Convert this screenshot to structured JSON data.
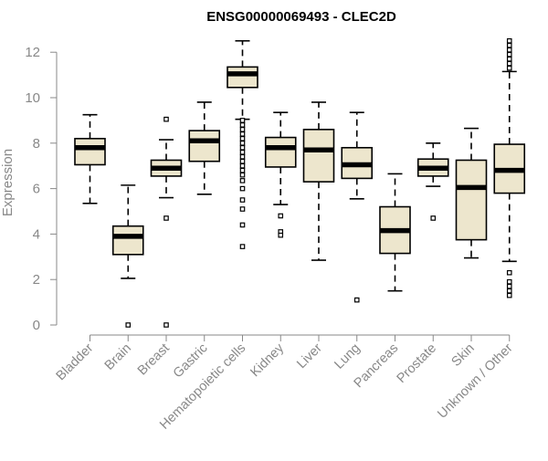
{
  "chart_data": {
    "type": "boxplot",
    "title": "ENSG00000069493 - CLEC2D",
    "xlabel": "",
    "ylabel": "Expression",
    "ylim": [
      0,
      12.6
    ],
    "yticks": [
      "0",
      "2",
      "4",
      "6",
      "8",
      "10",
      "12"
    ],
    "grid": false,
    "legend": "none",
    "colors": {
      "box_fill": "#ede6cd",
      "box_stroke": "#000000",
      "median": "#000000",
      "axis": "#888888"
    },
    "categories": [
      "Bladder",
      "Brain",
      "Breast",
      "Gastric",
      "Hematopoietic cells",
      "Kidney",
      "Liver",
      "Lung",
      "Pancreas",
      "Prostate",
      "Skin",
      "Unknown / Other"
    ],
    "boxes": [
      {
        "category": "Bladder",
        "whisker_low": 5.35,
        "q1": 7.05,
        "median": 7.8,
        "q3": 8.2,
        "whisker_high": 9.25,
        "outliers": []
      },
      {
        "category": "Brain",
        "whisker_low": 2.05,
        "q1": 3.1,
        "median": 3.9,
        "q3": 4.35,
        "whisker_high": 6.15,
        "outliers": [
          0.0
        ]
      },
      {
        "category": "Breast",
        "whisker_low": 5.6,
        "q1": 6.55,
        "median": 6.9,
        "q3": 7.25,
        "whisker_high": 8.15,
        "outliers": [
          9.05,
          4.7,
          0.0
        ]
      },
      {
        "category": "Gastric",
        "whisker_low": 5.75,
        "q1": 7.2,
        "median": 8.1,
        "q3": 8.55,
        "whisker_high": 9.8,
        "outliers": []
      },
      {
        "category": "Hematopoietic cells",
        "whisker_low": 9.05,
        "q1": 10.45,
        "median": 11.05,
        "q3": 11.35,
        "whisker_high": 12.5,
        "outliers": [
          9.0,
          8.8,
          8.6,
          8.4,
          8.2,
          8.0,
          7.8,
          7.6,
          7.4,
          7.2,
          7.0,
          6.8,
          6.6,
          6.35,
          6.0,
          5.5,
          5.1,
          4.4,
          3.45
        ]
      },
      {
        "category": "Kidney",
        "whisker_low": 5.3,
        "q1": 6.95,
        "median": 7.8,
        "q3": 8.25,
        "whisker_high": 9.35,
        "outliers": [
          4.8,
          4.1,
          3.95
        ]
      },
      {
        "category": "Liver",
        "whisker_low": 2.85,
        "q1": 6.3,
        "median": 7.7,
        "q3": 8.6,
        "whisker_high": 9.8,
        "outliers": []
      },
      {
        "category": "Lung",
        "whisker_low": 5.55,
        "q1": 6.45,
        "median": 7.05,
        "q3": 7.8,
        "whisker_high": 9.35,
        "outliers": [
          1.1
        ]
      },
      {
        "category": "Pancreas",
        "whisker_low": 1.5,
        "q1": 3.15,
        "median": 4.15,
        "q3": 5.2,
        "whisker_high": 6.65,
        "outliers": []
      },
      {
        "category": "Prostate",
        "whisker_low": 6.1,
        "q1": 6.55,
        "median": 6.9,
        "q3": 7.3,
        "whisker_high": 8.0,
        "outliers": [
          4.7
        ]
      },
      {
        "category": "Skin",
        "whisker_low": 2.95,
        "q1": 3.75,
        "median": 6.05,
        "q3": 7.25,
        "whisker_high": 8.65,
        "outliers": []
      },
      {
        "category": "Unknown / Other",
        "whisker_low": 2.8,
        "q1": 5.8,
        "median": 6.8,
        "q3": 7.95,
        "whisker_high": 11.15,
        "outliers": [
          12.5,
          12.3,
          12.1,
          11.9,
          11.7,
          11.5,
          11.3,
          2.3,
          1.9,
          1.7,
          1.5,
          1.3
        ]
      }
    ]
  }
}
